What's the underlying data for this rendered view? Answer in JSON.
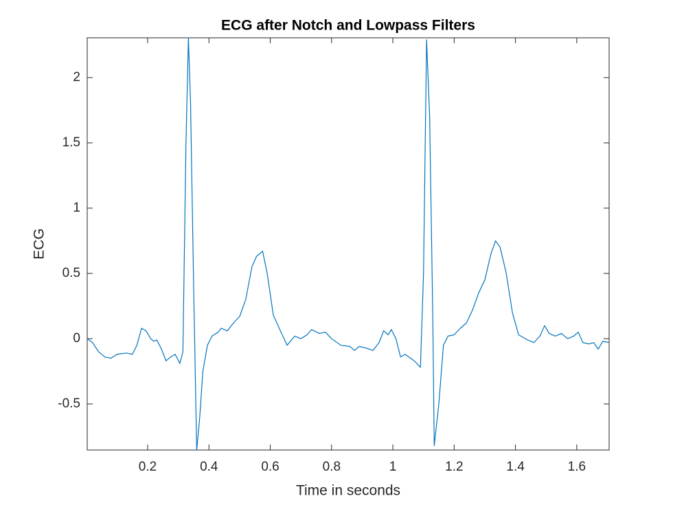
{
  "chart_data": {
    "type": "line",
    "title": "ECG after Notch and Lowpass Filters",
    "xlabel": "Time in seconds",
    "ylabel": "ECG",
    "x": [
      0.003,
      0.02,
      0.04,
      0.06,
      0.08,
      0.1,
      0.13,
      0.15,
      0.165,
      0.18,
      0.195,
      0.21,
      0.22,
      0.23,
      0.245,
      0.26,
      0.275,
      0.29,
      0.305,
      0.315,
      0.325,
      0.333,
      0.34,
      0.35,
      0.36,
      0.37,
      0.38,
      0.395,
      0.41,
      0.43,
      0.44,
      0.46,
      0.48,
      0.5,
      0.52,
      0.54,
      0.555,
      0.575,
      0.59,
      0.61,
      0.635,
      0.655,
      0.68,
      0.7,
      0.72,
      0.735,
      0.76,
      0.78,
      0.8,
      0.83,
      0.86,
      0.875,
      0.89,
      0.91,
      0.935,
      0.955,
      0.97,
      0.985,
      0.995,
      1.01,
      1.025,
      1.04,
      1.07,
      1.09,
      1.1,
      1.11,
      1.12,
      1.13,
      1.135,
      1.15,
      1.165,
      1.18,
      1.2,
      1.22,
      1.24,
      1.26,
      1.28,
      1.3,
      1.32,
      1.335,
      1.35,
      1.37,
      1.39,
      1.41,
      1.44,
      1.46,
      1.48,
      1.495,
      1.51,
      1.53,
      1.55,
      1.57,
      1.59,
      1.605,
      1.62,
      1.64,
      1.655,
      1.67,
      1.685,
      1.7056
    ],
    "series": [
      {
        "color": "#0072bd",
        "values": [
          0.0,
          -0.03,
          -0.1,
          -0.14,
          -0.15,
          -0.12,
          -0.11,
          -0.12,
          -0.05,
          0.08,
          0.06,
          0.0,
          -0.02,
          -0.01,
          -0.08,
          -0.17,
          -0.14,
          -0.12,
          -0.19,
          -0.1,
          1.5,
          2.305,
          1.8,
          0.4,
          -0.853,
          -0.6,
          -0.25,
          -0.05,
          0.02,
          0.05,
          0.08,
          0.06,
          0.12,
          0.17,
          0.3,
          0.55,
          0.63,
          0.67,
          0.5,
          0.18,
          0.05,
          -0.05,
          0.02,
          0.0,
          0.03,
          0.07,
          0.04,
          0.05,
          0.0,
          -0.05,
          -0.06,
          -0.09,
          -0.06,
          -0.07,
          -0.09,
          -0.03,
          0.06,
          0.03,
          0.07,
          0.0,
          -0.14,
          -0.12,
          -0.17,
          -0.22,
          0.5,
          2.29,
          1.7,
          0.2,
          -0.82,
          -0.5,
          -0.05,
          0.02,
          0.03,
          0.08,
          0.12,
          0.22,
          0.35,
          0.45,
          0.65,
          0.75,
          0.7,
          0.5,
          0.2,
          0.03,
          -0.01,
          -0.03,
          0.02,
          0.1,
          0.04,
          0.02,
          0.04,
          0.0,
          0.02,
          0.05,
          -0.03,
          -0.04,
          -0.03,
          -0.08,
          -0.02,
          -0.03
        ]
      }
    ],
    "xlim": [
      0.0028,
      1.7056
    ],
    "ylim": [
      -0.853,
      2.305
    ],
    "xticks": [
      0.2,
      0.4,
      0.6,
      0.8,
      1,
      1.2,
      1.4,
      1.6
    ],
    "yticks": [
      -0.5,
      0,
      0.5,
      1,
      1.5,
      2
    ],
    "grid": false
  }
}
